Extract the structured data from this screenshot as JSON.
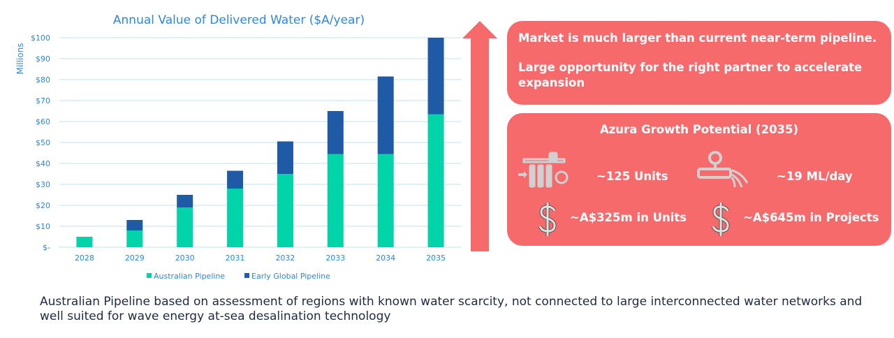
{
  "chart_data": {
    "type": "bar",
    "stacked": true,
    "title": "Annual Value of Delivered Water ($A/year)",
    "ylabel": "Millions",
    "xlabel": "",
    "ylim": [
      0,
      100
    ],
    "yticks": [
      "$-",
      "$10",
      "$20",
      "$30",
      "$40",
      "$50",
      "$60",
      "$70",
      "$80",
      "$90",
      "$100"
    ],
    "grid": true,
    "legend_position": "bottom",
    "categories": [
      "2028",
      "2029",
      "2030",
      "2031",
      "2032",
      "2033",
      "2034",
      "2035"
    ],
    "series": [
      {
        "name": "Australian Pipeline",
        "color": "#00d4a8",
        "values": [
          5,
          8,
          19,
          28,
          35,
          44.5,
          44.5,
          63.5
        ]
      },
      {
        "name": "Early Global Pipeline",
        "color": "#1f5aa6",
        "values": [
          0,
          5,
          6,
          8.5,
          15.5,
          20.5,
          37,
          36.5
        ]
      }
    ]
  },
  "colors": {
    "accent": "#f76a6c",
    "axis_text": "#2e86de",
    "title": "#2e86de"
  },
  "callout": {
    "line1": "Market is much larger than current near-term pipeline.",
    "line2": "Large opportunity for the right partner to accelerate expansion"
  },
  "growth": {
    "title": "Azura Growth Potential (2035)",
    "units": "~125 Units",
    "flow": "~19 ML/day",
    "units_value": "~A$325m in Units",
    "projects_value": "~A$645m in Projects",
    "icons": [
      "water-filter-icon",
      "pipe-outflow-icon",
      "dollar-icon",
      "dollar-icon"
    ]
  },
  "footnote": "Australian Pipeline based on assessment of regions with known water scarcity, not connected to large interconnected water networks and well suited for wave energy at-sea desalination technology"
}
